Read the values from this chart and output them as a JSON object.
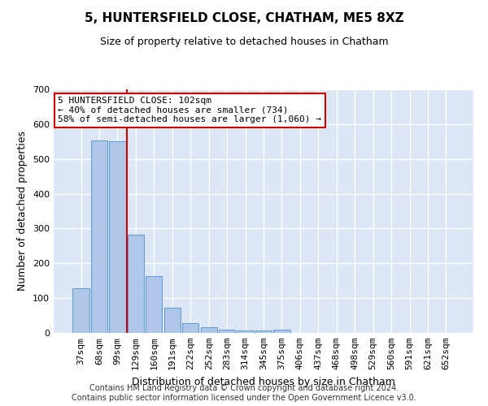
{
  "title": "5, HUNTERSFIELD CLOSE, CHATHAM, ME5 8XZ",
  "subtitle": "Size of property relative to detached houses in Chatham",
  "xlabel": "Distribution of detached houses by size in Chatham",
  "ylabel": "Number of detached properties",
  "footer_line1": "Contains HM Land Registry data © Crown copyright and database right 2024.",
  "footer_line2": "Contains public sector information licensed under the Open Government Licence v3.0.",
  "categories": [
    "37sqm",
    "68sqm",
    "99sqm",
    "129sqm",
    "160sqm",
    "191sqm",
    "222sqm",
    "252sqm",
    "283sqm",
    "314sqm",
    "345sqm",
    "375sqm",
    "406sqm",
    "437sqm",
    "468sqm",
    "498sqm",
    "529sqm",
    "560sqm",
    "591sqm",
    "621sqm",
    "652sqm"
  ],
  "values": [
    128,
    552,
    550,
    283,
    163,
    72,
    29,
    17,
    10,
    8,
    8,
    10,
    0,
    0,
    0,
    0,
    0,
    0,
    0,
    0,
    0
  ],
  "bar_color": "#aec6e8",
  "bar_edge_color": "#5b9bd5",
  "background_color": "#dce6f5",
  "grid_color": "#ffffff",
  "vline_x_index": 2,
  "vline_color": "#cc0000",
  "annotation_line1": "5 HUNTERSFIELD CLOSE: 102sqm",
  "annotation_line2": "← 40% of detached houses are smaller (734)",
  "annotation_line3": "58% of semi-detached houses are larger (1,060) →",
  "annotation_box_color": "#cc0000",
  "ylim": [
    0,
    700
  ],
  "yticks": [
    0,
    100,
    200,
    300,
    400,
    500,
    600,
    700
  ],
  "title_fontsize": 11,
  "subtitle_fontsize": 9,
  "ylabel_fontsize": 9,
  "xlabel_fontsize": 9,
  "tick_fontsize": 8,
  "footer_fontsize": 7
}
